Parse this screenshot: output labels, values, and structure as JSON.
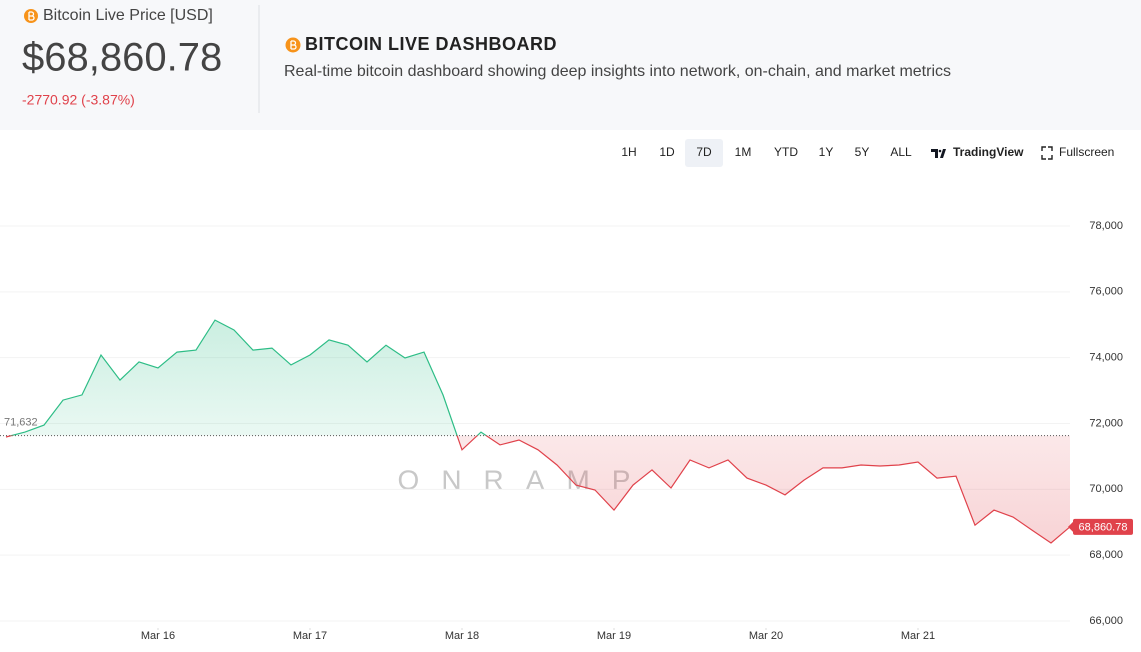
{
  "header": {
    "price_label": "Bitcoin Live Price [USD]",
    "price": "$68,860.78",
    "change": "-2770.92 (-3.87%)",
    "title": "BITCOIN LIVE DASHBOARD",
    "subtitle": "Real-time bitcoin dashboard showing deep insights into network, on-chain, and market metrics"
  },
  "toolbar": {
    "ranges": [
      "1H",
      "1D",
      "7D",
      "1M",
      "YTD",
      "1Y",
      "5Y",
      "ALL"
    ],
    "selected_index": 2,
    "tradingview": "TradingView",
    "fullscreen": "Fullscreen"
  },
  "chart_data": {
    "type": "area",
    "watermark": "ONRAMP",
    "x": [
      0,
      3,
      6,
      9,
      12,
      15,
      18,
      21,
      24,
      27,
      30,
      33,
      36,
      39,
      42,
      45,
      48,
      51,
      54,
      57,
      60,
      63,
      66,
      69,
      72,
      75,
      78,
      81,
      84,
      87,
      90,
      93,
      96,
      99,
      102,
      105,
      108,
      111,
      114,
      117,
      120,
      123,
      126,
      129,
      132,
      135,
      138,
      141,
      144,
      147,
      150,
      153,
      156,
      159,
      162,
      165,
      168
    ],
    "values": [
      71590,
      71740,
      71950,
      72710,
      72870,
      74080,
      73320,
      73870,
      73690,
      74170,
      74230,
      75140,
      74840,
      74230,
      74290,
      73780,
      74080,
      74540,
      74380,
      73870,
      74380,
      73990,
      74170,
      72870,
      71200,
      71740,
      71350,
      71500,
      71200,
      70740,
      70130,
      69980,
      69370,
      70130,
      70590,
      70040,
      70890,
      70650,
      70890,
      70340,
      70130,
      69830,
      70280,
      70650,
      70650,
      70740,
      70710,
      70740,
      70830,
      70340,
      70400,
      68910,
      69370,
      69160,
      68760,
      68370,
      68860.78
    ],
    "xlim": [
      0,
      168
    ],
    "xticks": [
      {
        "value": 24,
        "label": "Mar 16"
      },
      {
        "value": 48,
        "label": "Mar 17"
      },
      {
        "value": 72,
        "label": "Mar 18"
      },
      {
        "value": 96,
        "label": "Mar 19"
      },
      {
        "value": 120,
        "label": "Mar 20"
      },
      {
        "value": 144,
        "label": "Mar 21"
      }
    ],
    "ylim": [
      66000,
      78000
    ],
    "yticks": [
      {
        "value": 66000,
        "label": "66,000"
      },
      {
        "value": 68000,
        "label": "68,000"
      },
      {
        "value": 70000,
        "label": "70,000"
      },
      {
        "value": 72000,
        "label": "72,000"
      },
      {
        "value": 74000,
        "label": "74,000"
      },
      {
        "value": 76000,
        "label": "76,000"
      },
      {
        "value": 78000,
        "label": "78,000"
      }
    ],
    "baseline": {
      "value": 71632,
      "label": "71,632"
    },
    "last_label": "68,860.78",
    "up_color": "#2dbd86",
    "down_color": "#e0424b"
  }
}
